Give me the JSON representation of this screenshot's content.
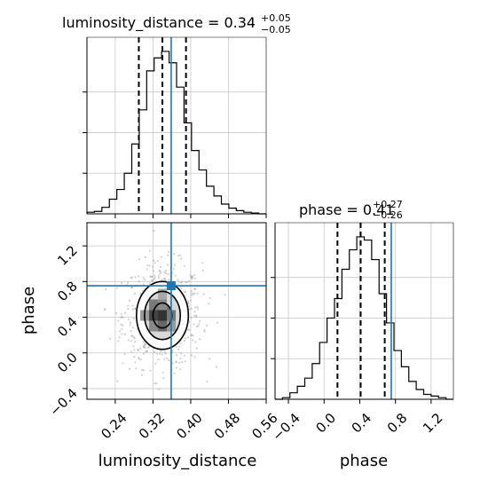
{
  "chart_data": {
    "type": "corner",
    "parameters": [
      "luminosity_distance",
      "phase"
    ],
    "truth_color": "#1f77b4",
    "grid": true,
    "panels": [
      {
        "kind": "histogram",
        "parameter": "luminosity_distance",
        "title_prefix": "luminosity_distance = ",
        "median": "0.34",
        "plus": "+0.05",
        "minus": "−0.05",
        "xlim": [
          0.18,
          0.56
        ],
        "bin_edges": [
          0.18,
          0.19583,
          0.21167,
          0.2275,
          0.24333,
          0.25917,
          0.275,
          0.29083,
          0.30667,
          0.3225,
          0.33833,
          0.35417,
          0.37,
          0.38583,
          0.40167,
          0.4175,
          0.43333,
          0.44917,
          0.465,
          0.48083,
          0.49667,
          0.5125,
          0.52833,
          0.54417,
          0.56
        ],
        "counts": [
          0.01,
          0.015,
          0.04,
          0.09,
          0.15,
          0.25,
          0.43,
          0.64,
          0.88,
          0.96,
          1.0,
          0.93,
          0.78,
          0.56,
          0.39,
          0.27,
          0.17,
          0.11,
          0.06,
          0.035,
          0.02,
          0.01,
          0.005,
          0.0
        ],
        "quantiles": [
          0.29,
          0.34,
          0.39
        ],
        "truth": 0.3586
      },
      {
        "kind": "histogram",
        "parameter": "phase",
        "title_prefix": "phase = ",
        "median": "0.41",
        "plus": "+0.27",
        "minus": "−0.26",
        "xlim": [
          -0.55,
          1.45
        ],
        "bin_edges": [
          -0.55,
          -0.4667,
          -0.3833,
          -0.3,
          -0.2167,
          -0.1333,
          -0.05,
          0.0333,
          0.1167,
          0.2,
          0.2833,
          0.3667,
          0.45,
          0.5333,
          0.6167,
          0.7,
          0.7833,
          0.8667,
          0.95,
          1.0333,
          1.1167,
          1.2,
          1.2833,
          1.3667,
          1.45
        ],
        "counts": [
          0.0,
          0.01,
          0.04,
          0.08,
          0.13,
          0.22,
          0.35,
          0.5,
          0.62,
          0.8,
          0.92,
          1.0,
          0.98,
          0.86,
          0.65,
          0.47,
          0.3,
          0.2,
          0.11,
          0.06,
          0.03,
          0.02,
          0.01,
          0.0
        ],
        "quantiles": [
          0.15,
          0.41,
          0.68
        ],
        "truth": 0.7531
      },
      {
        "kind": "2d",
        "x": "luminosity_distance",
        "y": "phase",
        "xlim": [
          0.18,
          0.56
        ],
        "ylim": [
          -0.52,
          1.46
        ],
        "center": [
          0.34,
          0.42
        ],
        "contours": [
          {
            "level": "inner",
            "rx": 0.02,
            "ry": 0.14
          },
          {
            "level": "mid",
            "rx": 0.038,
            "ry": 0.27
          },
          {
            "level": "outer",
            "rx": 0.055,
            "ry": 0.38
          }
        ],
        "truth": [
          0.3586,
          0.7531
        ]
      }
    ],
    "x_ticks_distance": [
      "0.24",
      "0.32",
      "0.40",
      "0.48",
      "0.56"
    ],
    "x_tick_values_distance": [
      0.24,
      0.32,
      0.4,
      0.48,
      0.56
    ],
    "y_ticks_phase": [
      "−0.4",
      "0.0",
      "0.4",
      "0.8",
      "1.2"
    ],
    "y_tick_values_phase": [
      -0.4,
      0.0,
      0.4,
      0.8,
      1.2
    ],
    "x_ticks_phase": [
      "−0.4",
      "0.0",
      "0.4",
      "0.8",
      "1.2"
    ],
    "x_tick_values_phase": [
      -0.4,
      0.0,
      0.4,
      0.8,
      1.2
    ],
    "xlabel_distance": "luminosity_distance",
    "xlabel_phase": "phase",
    "ylabel_phase": "phase"
  }
}
